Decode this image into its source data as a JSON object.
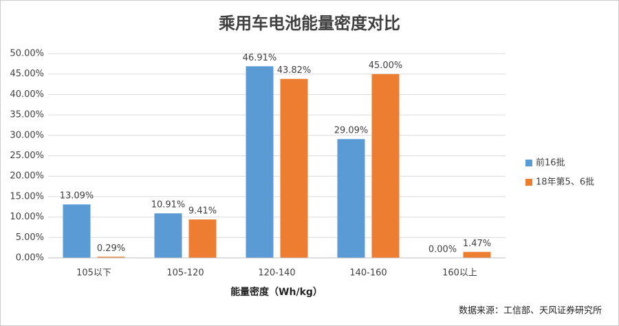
{
  "chart_data": {
    "type": "bar",
    "title": "乘用车电池能量密度对比",
    "x_label": "能量密度（Wh/kg）",
    "source": "数据来源：工信部、天风证券研究所",
    "categories": [
      "105以下",
      "105-120",
      "120-140",
      "140-160",
      "160以上"
    ],
    "series": [
      {
        "name": "前16批",
        "color": "#5b9bd5",
        "values": [
          13.09,
          10.91,
          46.91,
          29.09,
          0
        ],
        "value_labels": [
          "13.09%",
          "10.91%",
          "46.91%",
          "29.09%",
          "0.00%"
        ]
      },
      {
        "name": "18年第5、6批",
        "color": "#ed7d31",
        "values": [
          0.29,
          9.41,
          43.82,
          45,
          1.47
        ],
        "value_labels": [
          "0.29%",
          "9.41%",
          "43.82%",
          "45.00%",
          "1.47%"
        ]
      }
    ],
    "ylim": [
      0,
      50
    ],
    "yticks": [
      {
        "value": 0,
        "label": "0.00%"
      },
      {
        "value": 5,
        "label": "5.00%"
      },
      {
        "value": 10,
        "label": "10.00%"
      },
      {
        "value": 15,
        "label": "15.00%"
      },
      {
        "value": 20,
        "label": "20.00%"
      },
      {
        "value": 25,
        "label": "25.00%"
      },
      {
        "value": 30,
        "label": "30.00%"
      },
      {
        "value": 35,
        "label": "35.00%"
      },
      {
        "value": 40,
        "label": "40.00%"
      },
      {
        "value": 45,
        "label": "45.00%"
      },
      {
        "value": 50,
        "label": "50.00%"
      }
    ],
    "grid": true,
    "legend": "right"
  }
}
